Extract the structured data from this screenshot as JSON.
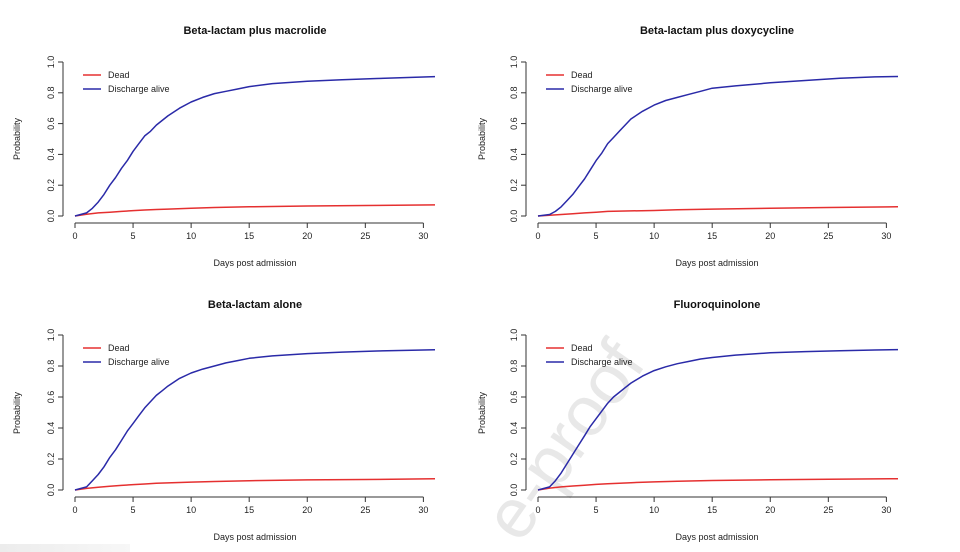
{
  "watermark": "e-proof",
  "colors": {
    "dead": "#e53030",
    "discharge": "#2a2aa8",
    "axis": "#333333"
  },
  "chart_data": [
    {
      "type": "line",
      "title": "Beta-lactam plus macrolide",
      "xlabel": "Days post admission",
      "ylabel": "Probability",
      "xlim": [
        0,
        31
      ],
      "ylim": [
        0,
        1
      ],
      "xticks": [
        "0",
        "5",
        "10",
        "15",
        "20",
        "25",
        "30"
      ],
      "yticks": [
        "0.0",
        "0.2",
        "0.4",
        "0.6",
        "0.8",
        "1.0"
      ],
      "legend_position": "top-left",
      "series": [
        {
          "name": "Dead",
          "color": "#e53030",
          "x": [
            0,
            1,
            2,
            3,
            4,
            5,
            6,
            7,
            8,
            10,
            12,
            15,
            20,
            25,
            31
          ],
          "y": [
            0,
            0.012,
            0.02,
            0.025,
            0.03,
            0.035,
            0.039,
            0.042,
            0.045,
            0.05,
            0.055,
            0.06,
            0.065,
            0.068,
            0.072
          ]
        },
        {
          "name": "Discharge alive",
          "color": "#2a2aa8",
          "x": [
            0,
            1,
            1.5,
            2,
            2.5,
            3,
            3.5,
            4,
            4.5,
            5,
            5.5,
            6,
            6.5,
            7,
            7.5,
            8,
            9,
            10,
            11,
            12,
            13,
            14,
            15,
            17,
            20,
            23,
            26,
            29,
            31
          ],
          "y": [
            0,
            0.02,
            0.05,
            0.09,
            0.14,
            0.2,
            0.25,
            0.31,
            0.36,
            0.42,
            0.47,
            0.52,
            0.55,
            0.59,
            0.62,
            0.65,
            0.7,
            0.74,
            0.77,
            0.795,
            0.81,
            0.825,
            0.84,
            0.86,
            0.875,
            0.885,
            0.893,
            0.9,
            0.905
          ]
        }
      ]
    },
    {
      "type": "line",
      "title": "Beta-lactam plus doxycycline",
      "xlabel": "Days post admission",
      "ylabel": "Probability",
      "xlim": [
        0,
        31
      ],
      "ylim": [
        0,
        1
      ],
      "xticks": [
        "0",
        "5",
        "10",
        "15",
        "20",
        "25",
        "30"
      ],
      "yticks": [
        "0.0",
        "0.2",
        "0.4",
        "0.6",
        "0.8",
        "1.0"
      ],
      "legend_position": "top-left",
      "series": [
        {
          "name": "Dead",
          "color": "#e53030",
          "x": [
            0,
            1,
            2,
            3,
            4,
            5,
            6,
            8,
            10,
            12,
            15,
            20,
            25,
            31
          ],
          "y": [
            0,
            0.005,
            0.01,
            0.015,
            0.02,
            0.025,
            0.03,
            0.033,
            0.036,
            0.04,
            0.045,
            0.05,
            0.055,
            0.06
          ]
        },
        {
          "name": "Discharge alive",
          "color": "#2a2aa8",
          "x": [
            0,
            1,
            1.5,
            2,
            2.5,
            3,
            3.5,
            4,
            4.5,
            5,
            5.5,
            6,
            6.5,
            7,
            7.5,
            8,
            9,
            10,
            11,
            12,
            13,
            14,
            15,
            17,
            20,
            23,
            26,
            29,
            31
          ],
          "y": [
            0,
            0.01,
            0.03,
            0.06,
            0.1,
            0.14,
            0.19,
            0.24,
            0.3,
            0.36,
            0.41,
            0.47,
            0.51,
            0.55,
            0.59,
            0.63,
            0.68,
            0.72,
            0.75,
            0.77,
            0.79,
            0.81,
            0.83,
            0.845,
            0.865,
            0.88,
            0.895,
            0.903,
            0.906
          ]
        }
      ]
    },
    {
      "type": "line",
      "title": "Beta-lactam alone",
      "xlabel": "Days post admission",
      "ylabel": "Probability",
      "xlim": [
        0,
        31
      ],
      "ylim": [
        0,
        1
      ],
      "xticks": [
        "0",
        "5",
        "10",
        "15",
        "20",
        "25",
        "30"
      ],
      "yticks": [
        "0.0",
        "0.2",
        "0.4",
        "0.6",
        "0.8",
        "1.0"
      ],
      "legend_position": "top-left",
      "series": [
        {
          "name": "Dead",
          "color": "#e53030",
          "x": [
            0,
            1,
            2,
            3,
            4,
            5,
            6,
            7,
            8,
            10,
            12,
            15,
            20,
            25,
            31
          ],
          "y": [
            0,
            0.01,
            0.018,
            0.024,
            0.03,
            0.035,
            0.039,
            0.043,
            0.046,
            0.051,
            0.055,
            0.06,
            0.065,
            0.068,
            0.072
          ]
        },
        {
          "name": "Discharge alive",
          "color": "#2a2aa8",
          "x": [
            0,
            1,
            1.5,
            2,
            2.5,
            3,
            3.5,
            4,
            4.5,
            5,
            5.5,
            6,
            6.5,
            7,
            7.5,
            8,
            9,
            10,
            11,
            12,
            13,
            14,
            15,
            17,
            20,
            23,
            26,
            29,
            31
          ],
          "y": [
            0,
            0.02,
            0.06,
            0.1,
            0.15,
            0.21,
            0.26,
            0.32,
            0.38,
            0.43,
            0.48,
            0.53,
            0.57,
            0.61,
            0.64,
            0.67,
            0.72,
            0.755,
            0.78,
            0.8,
            0.82,
            0.835,
            0.85,
            0.865,
            0.88,
            0.89,
            0.897,
            0.902,
            0.905
          ]
        }
      ]
    },
    {
      "type": "line",
      "title": "Fluoroquinolone",
      "xlabel": "Days post admission",
      "ylabel": "Probability",
      "xlim": [
        0,
        31
      ],
      "ylim": [
        0,
        1
      ],
      "xticks": [
        "0",
        "5",
        "10",
        "15",
        "20",
        "25",
        "30"
      ],
      "yticks": [
        "0.0",
        "0.2",
        "0.4",
        "0.6",
        "0.8",
        "1.0"
      ],
      "legend_position": "top-left",
      "series": [
        {
          "name": "Dead",
          "color": "#e53030",
          "x": [
            0,
            1,
            2,
            3,
            4,
            5,
            6,
            7,
            8,
            10,
            12,
            15,
            20,
            25,
            31
          ],
          "y": [
            0,
            0.012,
            0.02,
            0.026,
            0.031,
            0.036,
            0.04,
            0.044,
            0.047,
            0.052,
            0.056,
            0.061,
            0.066,
            0.069,
            0.073
          ]
        },
        {
          "name": "Discharge alive",
          "color": "#2a2aa8",
          "x": [
            0,
            1,
            1.5,
            2,
            2.5,
            3,
            3.5,
            4,
            4.5,
            5,
            5.5,
            6,
            6.5,
            7,
            7.5,
            8,
            9,
            10,
            11,
            12,
            13,
            14,
            15,
            17,
            20,
            23,
            26,
            29,
            31
          ],
          "y": [
            0,
            0.02,
            0.06,
            0.11,
            0.17,
            0.23,
            0.29,
            0.35,
            0.41,
            0.46,
            0.51,
            0.56,
            0.6,
            0.63,
            0.66,
            0.69,
            0.735,
            0.77,
            0.795,
            0.815,
            0.83,
            0.845,
            0.855,
            0.87,
            0.885,
            0.893,
            0.899,
            0.903,
            0.906
          ]
        }
      ]
    }
  ]
}
